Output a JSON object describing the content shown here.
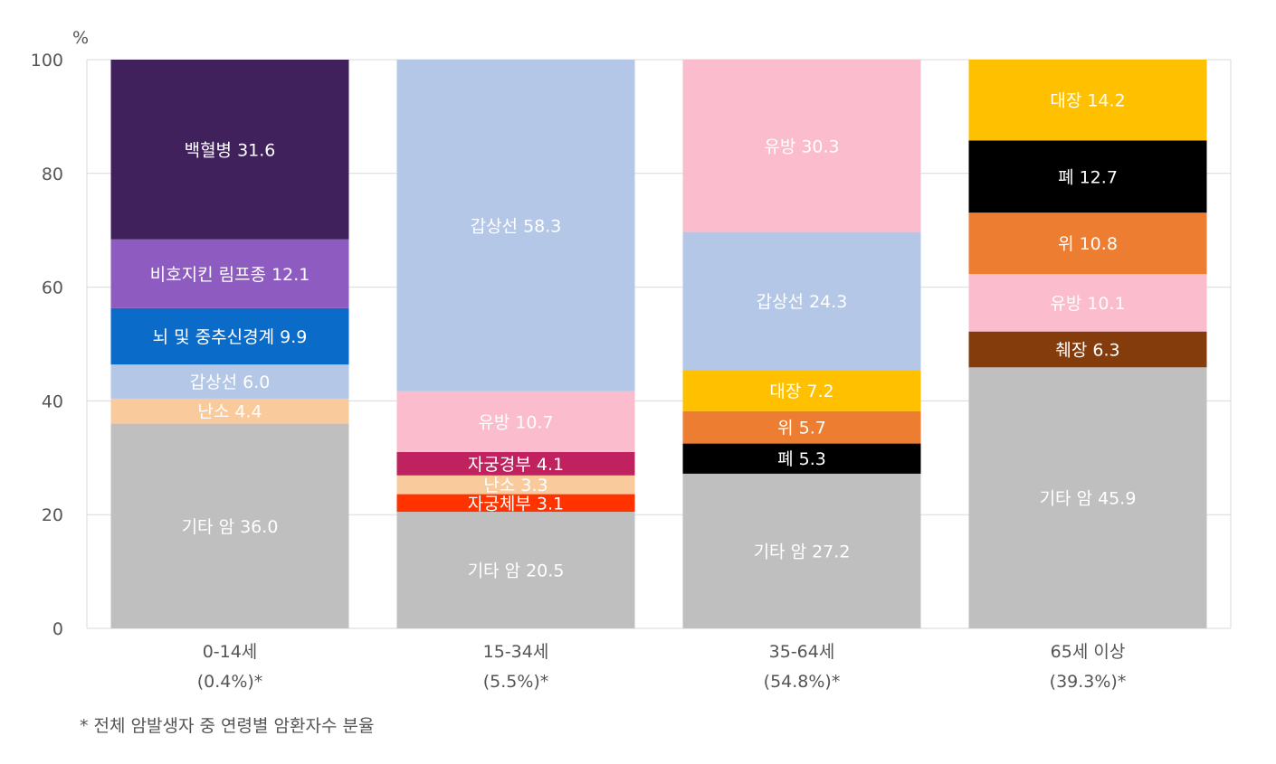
{
  "chart_data": {
    "type": "bar",
    "stacked": true,
    "yunit": "%",
    "ylim": [
      0,
      100
    ],
    "yticks": [
      0,
      20,
      40,
      60,
      80,
      100
    ],
    "grid": true,
    "categories": [
      {
        "name": "0-14세",
        "share": "(0.4%)*"
      },
      {
        "name": "15-34세",
        "share": "(5.5%)*"
      },
      {
        "name": "35-64세",
        "share": "(54.8%)*"
      },
      {
        "name": "65세 이상",
        "share": "(39.3%)*"
      }
    ],
    "stacks": [
      [
        {
          "label": "기타 암",
          "value": 36.0,
          "color": "#bfbfbf"
        },
        {
          "label": "난소",
          "value": 4.4,
          "color": "#f9cb9c"
        },
        {
          "label": "갑상선",
          "value": 6.0,
          "color": "#b4c7e7"
        },
        {
          "label": "뇌 및 중추신경계",
          "value": 9.9,
          "color": "#0b6bc8"
        },
        {
          "label": "비호지킨 림프종",
          "value": 12.1,
          "color": "#8e5bc0"
        },
        {
          "label": "백혈병",
          "value": 31.6,
          "color": "#41215c"
        }
      ],
      [
        {
          "label": "기타 암",
          "value": 20.5,
          "color": "#bfbfbf"
        },
        {
          "label": "자궁체부",
          "value": 3.1,
          "color": "#ff3300"
        },
        {
          "label": "난소",
          "value": 3.3,
          "color": "#f9cb9c"
        },
        {
          "label": "자궁경부",
          "value": 4.1,
          "color": "#c0215f"
        },
        {
          "label": "유방",
          "value": 10.7,
          "color": "#fbbccd"
        },
        {
          "label": "갑상선",
          "value": 58.3,
          "color": "#b4c7e7"
        }
      ],
      [
        {
          "label": "기타 암",
          "value": 27.2,
          "color": "#bfbfbf"
        },
        {
          "label": "폐",
          "value": 5.3,
          "color": "#000000"
        },
        {
          "label": "위",
          "value": 5.7,
          "color": "#ed7d31"
        },
        {
          "label": "대장",
          "value": 7.2,
          "color": "#ffc000"
        },
        {
          "label": "갑상선",
          "value": 24.3,
          "color": "#b4c7e7"
        },
        {
          "label": "유방",
          "value": 30.3,
          "color": "#fbbccd"
        }
      ],
      [
        {
          "label": "기타 암",
          "value": 45.9,
          "color": "#bfbfbf"
        },
        {
          "label": "췌장",
          "value": 6.3,
          "color": "#843c0c"
        },
        {
          "label": "유방",
          "value": 10.1,
          "color": "#fbbccd"
        },
        {
          "label": "위",
          "value": 10.8,
          "color": "#ed7d31"
        },
        {
          "label": "폐",
          "value": 12.7,
          "color": "#000000"
        },
        {
          "label": "대장",
          "value": 14.2,
          "color": "#ffc000"
        }
      ]
    ],
    "footnote": "* 전체 암발생자 중 연령별 암환자수 분율"
  }
}
